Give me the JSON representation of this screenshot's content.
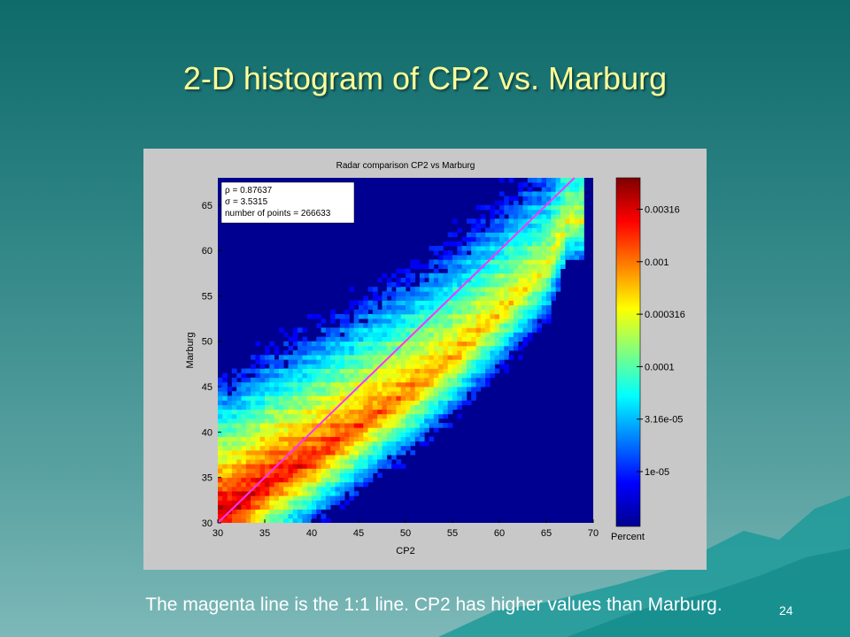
{
  "slide": {
    "title": "2-D histogram of CP2 vs. Marburg",
    "caption": "The magenta line is the 1:1 line. CP2 has higher values than Marburg.",
    "page_number": "24"
  },
  "chart_data": {
    "type": "heatmap",
    "title": "Radar comparison CP2 vs Marburg",
    "xlabel": "CP2",
    "ylabel": "Marburg",
    "xlim": [
      30,
      70
    ],
    "ylim": [
      30,
      68
    ],
    "xticks": [
      30,
      35,
      40,
      45,
      50,
      55,
      60,
      65,
      70
    ],
    "yticks": [
      30,
      35,
      40,
      45,
      50,
      55,
      60,
      65
    ],
    "colorbar": {
      "label": "Percent",
      "scale": "log",
      "range": [
        3e-06,
        0.0063
      ],
      "ticks": [
        "0.00316",
        "0.001",
        "0.000316",
        "0.0001",
        "3.16e-05",
        "1e-05"
      ],
      "tick_values": [
        0.00316,
        0.001,
        0.000316,
        0.0001,
        3.16e-05,
        1e-05
      ]
    },
    "stats": [
      "ρ = 0.87637",
      "σ = 3.5315",
      "number of points = 266633"
    ],
    "reference_line": {
      "name": "1:1 line",
      "color": "#ff33ff",
      "x": [
        30,
        68
      ],
      "y": [
        30,
        68
      ]
    },
    "background_color": "#000090",
    "density_ridge": {
      "description": "Counts concentrated below the 1:1 line; Marburg lower than CP2",
      "ridge_points": [
        [
          31,
          31
        ],
        [
          35,
          34
        ],
        [
          40,
          37
        ],
        [
          45,
          40.5
        ],
        [
          50,
          44
        ],
        [
          55,
          48
        ],
        [
          60,
          53
        ],
        [
          65,
          58
        ],
        [
          67,
          63
        ]
      ]
    },
    "grid": false
  }
}
